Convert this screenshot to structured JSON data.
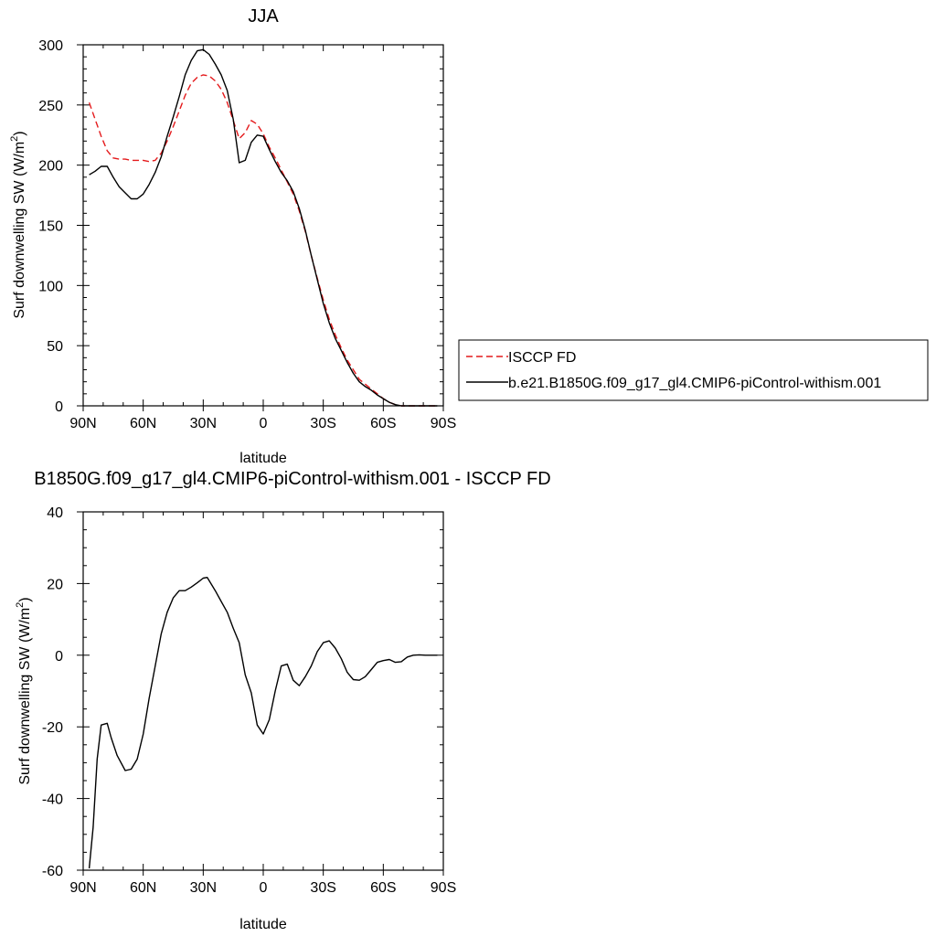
{
  "chart_data": [
    {
      "type": "line",
      "title": "JJA",
      "xlabel": "latitude",
      "ylabel": "Surf downwelling SW (W/m",
      "ylabel_sup": "2",
      "ylabel_close": ")",
      "x_ticks": [
        {
          "value": 90,
          "label": "90N"
        },
        {
          "value": 60,
          "label": "60N"
        },
        {
          "value": 30,
          "label": "30N"
        },
        {
          "value": 0,
          "label": "0"
        },
        {
          "value": -30,
          "label": "30S"
        },
        {
          "value": -60,
          "label": "60S"
        },
        {
          "value": -90,
          "label": "90S"
        }
      ],
      "y_ticks": [
        0,
        50,
        100,
        150,
        200,
        250,
        300
      ],
      "xlim": [
        90,
        -90
      ],
      "ylim": [
        0,
        300
      ],
      "legend_position": "right",
      "x": [
        87,
        84,
        81,
        78,
        75,
        72,
        69,
        66,
        63,
        60,
        57,
        54,
        51,
        48,
        45,
        42,
        39,
        36,
        33,
        30,
        27,
        24,
        21,
        18,
        15,
        12,
        9,
        6,
        3,
        0,
        -3,
        -6,
        -9,
        -12,
        -15,
        -18,
        -21,
        -24,
        -27,
        -30,
        -33,
        -36,
        -39,
        -42,
        -45,
        -48,
        -51,
        -54,
        -57,
        -60,
        -63,
        -66,
        -69,
        -72,
        -75,
        -78,
        -81,
        -84,
        -87
      ],
      "series": [
        {
          "name": "ISCCP FD",
          "color": "#e41a1c",
          "dash": "dashed",
          "values": [
            252,
            238,
            224,
            212,
            206,
            205,
            205,
            204,
            204,
            204,
            203,
            204,
            210,
            220,
            232,
            245,
            258,
            268,
            273,
            275,
            274,
            270,
            263,
            252,
            237,
            222,
            227,
            237,
            234,
            226,
            215,
            206,
            196,
            186,
            176,
            162,
            145,
            125,
            106,
            88,
            72,
            59,
            48,
            38,
            30,
            22,
            18,
            14,
            10,
            6,
            3,
            1,
            0,
            0,
            0,
            0,
            0,
            0,
            0
          ]
        },
        {
          "name": "b.e21.B1850G.f09_g17_gl4.CMIP6-piControl-withism.001",
          "color": "#000000",
          "dash": "solid",
          "values": [
            192,
            195,
            199,
            199,
            190,
            182,
            177,
            172,
            172,
            176,
            184,
            194,
            207,
            224,
            240,
            257,
            275,
            287,
            295,
            296,
            292,
            284,
            275,
            262,
            238,
            202,
            204,
            219,
            225,
            224,
            213,
            203,
            194,
            187,
            178,
            164,
            146,
            125,
            105,
            85,
            69,
            56,
            46,
            36,
            27,
            20,
            16,
            13,
            9,
            6,
            3,
            1,
            0,
            0,
            0,
            0,
            0,
            0,
            0
          ]
        }
      ]
    },
    {
      "type": "line",
      "title": "B1850G.f09_g17_gl4.CMIP6-piControl-withism.001 - ISCCP FD",
      "xlabel": "latitude",
      "ylabel": "Surf downwelling SW (W/m",
      "ylabel_sup": "2",
      "ylabel_close": ")",
      "x_ticks": [
        {
          "value": 90,
          "label": "90N"
        },
        {
          "value": 60,
          "label": "60N"
        },
        {
          "value": 30,
          "label": "30N"
        },
        {
          "value": 0,
          "label": "0"
        },
        {
          "value": -30,
          "label": "30S"
        },
        {
          "value": -60,
          "label": "60S"
        },
        {
          "value": -90,
          "label": "90S"
        }
      ],
      "y_ticks": [
        -60,
        -40,
        -20,
        0,
        20,
        40
      ],
      "xlim": [
        90,
        -90
      ],
      "ylim": [
        -60,
        40
      ],
      "x": [
        87,
        85,
        83,
        81,
        78,
        76,
        73,
        69,
        66,
        63,
        60,
        57,
        54,
        51,
        48,
        45,
        42,
        39,
        36,
        33,
        30,
        28,
        24,
        21,
        18,
        15,
        12,
        9,
        6,
        3,
        0,
        -3,
        -6,
        -9,
        -12,
        -15,
        -18,
        -21,
        -24,
        -27,
        -30,
        -33,
        -36,
        -39,
        -42,
        -45,
        -48,
        -51,
        -54,
        -57,
        -60,
        -63,
        -66,
        -69,
        -72,
        -75,
        -78,
        -81,
        -84,
        -87
      ],
      "series": [
        {
          "name": "",
          "color": "#000000",
          "dash": "solid",
          "values": [
            -59.5,
            -48,
            -29,
            -19.5,
            -19,
            -23,
            -28,
            -32.2,
            -31.8,
            -29,
            -22,
            -12,
            -3,
            6,
            12,
            16,
            18,
            18,
            19,
            20.2,
            21.5,
            21.7,
            18,
            15,
            12,
            7.5,
            3.5,
            -5.5,
            -10.5,
            -19.5,
            -22,
            -18,
            -10,
            -3,
            -2.5,
            -7,
            -8.5,
            -6,
            -3,
            1,
            3.5,
            4,
            2,
            -1,
            -4.8,
            -6.8,
            -7,
            -6,
            -4,
            -2,
            -1.5,
            -1.2,
            -2,
            -1.8,
            -0.5,
            0,
            0.1,
            0,
            0,
            0
          ]
        }
      ]
    }
  ]
}
